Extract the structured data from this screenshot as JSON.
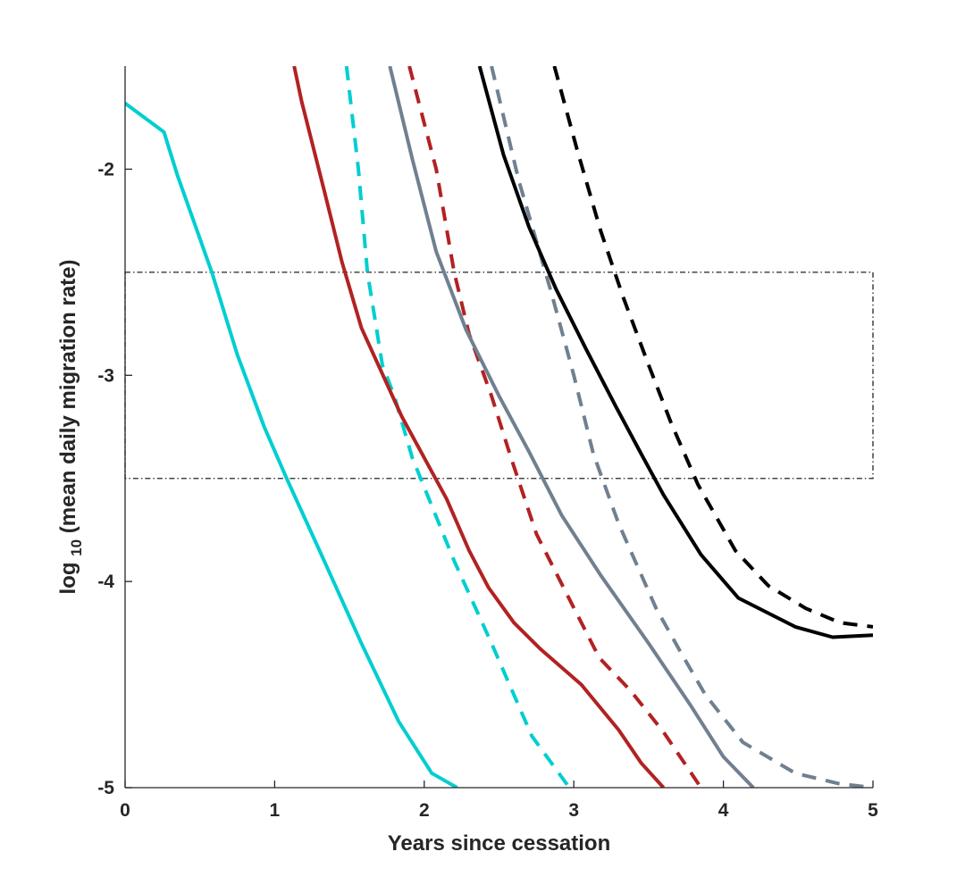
{
  "chart_data": {
    "type": "line",
    "xlabel": "Years since cessation",
    "ylabel": {
      "prefix": "log",
      "subscript": "10",
      "suffix": "(mean daily migration rate)"
    },
    "xlim": [
      0,
      5
    ],
    "ylim": [
      -5,
      -1.5
    ],
    "x_ticks": [
      0,
      1,
      2,
      3,
      4,
      5
    ],
    "y_ticks": [
      -5,
      -4,
      -3,
      -2
    ],
    "grid": false,
    "reference_band": {
      "y_lower": -3.5,
      "y_upper": -2.5,
      "x_from": 0,
      "x_to": 5,
      "style": "dash-dot"
    },
    "series": [
      {
        "color": "#00CED1",
        "style": "solid",
        "points": [
          [
            0,
            -1.68
          ],
          [
            0.26,
            -1.82
          ],
          [
            0.35,
            -2.03
          ],
          [
            0.58,
            -2.5
          ],
          [
            0.75,
            -2.9
          ],
          [
            0.93,
            -3.25
          ],
          [
            1.08,
            -3.5
          ],
          [
            1.3,
            -3.85
          ],
          [
            1.58,
            -4.3
          ],
          [
            1.83,
            -4.68
          ],
          [
            2.05,
            -4.93
          ],
          [
            2.22,
            -5
          ]
        ]
      },
      {
        "color": "#00CED1",
        "style": "dashed",
        "points": [
          [
            1.48,
            -1.5
          ],
          [
            1.56,
            -2.0
          ],
          [
            1.62,
            -2.5
          ],
          [
            1.72,
            -2.95
          ],
          [
            1.8,
            -3.1
          ],
          [
            1.92,
            -3.4
          ],
          [
            2.2,
            -3.9
          ],
          [
            2.45,
            -4.3
          ],
          [
            2.72,
            -4.75
          ],
          [
            2.97,
            -5
          ]
        ]
      },
      {
        "color": "#B22222",
        "style": "solid",
        "points": [
          [
            1.13,
            -1.5
          ],
          [
            1.18,
            -1.67
          ],
          [
            1.33,
            -2.1
          ],
          [
            1.45,
            -2.45
          ],
          [
            1.58,
            -2.77
          ],
          [
            1.85,
            -3.2
          ],
          [
            2.15,
            -3.6
          ],
          [
            2.3,
            -3.85
          ],
          [
            2.43,
            -4.03
          ],
          [
            2.6,
            -4.2
          ],
          [
            2.78,
            -4.33
          ],
          [
            3.05,
            -4.5
          ],
          [
            3.3,
            -4.72
          ],
          [
            3.45,
            -4.88
          ],
          [
            3.6,
            -5
          ]
        ]
      },
      {
        "color": "#B22222",
        "style": "dashed",
        "points": [
          [
            1.9,
            -1.5
          ],
          [
            2.08,
            -2.0
          ],
          [
            2.2,
            -2.5
          ],
          [
            2.3,
            -2.8
          ],
          [
            2.45,
            -3.1
          ],
          [
            2.58,
            -3.4
          ],
          [
            2.75,
            -3.77
          ],
          [
            2.98,
            -4.1
          ],
          [
            3.17,
            -4.37
          ],
          [
            3.38,
            -4.53
          ],
          [
            3.6,
            -4.73
          ],
          [
            3.85,
            -5
          ]
        ]
      },
      {
        "color": "#708090",
        "style": "solid",
        "points": [
          [
            1.77,
            -1.5
          ],
          [
            1.92,
            -1.95
          ],
          [
            2.08,
            -2.4
          ],
          [
            2.28,
            -2.78
          ],
          [
            2.5,
            -3.1
          ],
          [
            2.7,
            -3.37
          ],
          [
            2.92,
            -3.68
          ],
          [
            3.18,
            -3.97
          ],
          [
            3.5,
            -4.3
          ],
          [
            3.78,
            -4.6
          ],
          [
            4.0,
            -4.85
          ],
          [
            4.2,
            -5
          ]
        ]
      },
      {
        "color": "#708090",
        "style": "dashed",
        "points": [
          [
            2.45,
            -1.5
          ],
          [
            2.63,
            -2.05
          ],
          [
            2.85,
            -2.6
          ],
          [
            3.0,
            -3.0
          ],
          [
            3.13,
            -3.38
          ],
          [
            3.3,
            -3.72
          ],
          [
            3.55,
            -4.13
          ],
          [
            3.72,
            -4.35
          ],
          [
            3.88,
            -4.55
          ],
          [
            4.13,
            -4.78
          ],
          [
            4.48,
            -4.93
          ],
          [
            4.77,
            -4.98
          ],
          [
            5.0,
            -5
          ]
        ]
      },
      {
        "color": "#000000",
        "style": "solid",
        "points": [
          [
            2.37,
            -1.5
          ],
          [
            2.53,
            -1.93
          ],
          [
            2.7,
            -2.28
          ],
          [
            2.88,
            -2.58
          ],
          [
            3.08,
            -2.87
          ],
          [
            3.28,
            -3.15
          ],
          [
            3.45,
            -3.38
          ],
          [
            3.6,
            -3.58
          ],
          [
            3.85,
            -3.87
          ],
          [
            4.1,
            -4.08
          ],
          [
            4.48,
            -4.22
          ],
          [
            4.73,
            -4.27
          ],
          [
            5.0,
            -4.26
          ]
        ]
      },
      {
        "color": "#000000",
        "style": "dashed",
        "points": [
          [
            2.87,
            -1.5
          ],
          [
            3.02,
            -1.9
          ],
          [
            3.18,
            -2.3
          ],
          [
            3.33,
            -2.62
          ],
          [
            3.5,
            -2.95
          ],
          [
            3.65,
            -3.23
          ],
          [
            3.83,
            -3.53
          ],
          [
            4.08,
            -3.85
          ],
          [
            4.3,
            -4.02
          ],
          [
            4.55,
            -4.13
          ],
          [
            4.78,
            -4.2
          ],
          [
            5.0,
            -4.22
          ]
        ]
      }
    ]
  }
}
